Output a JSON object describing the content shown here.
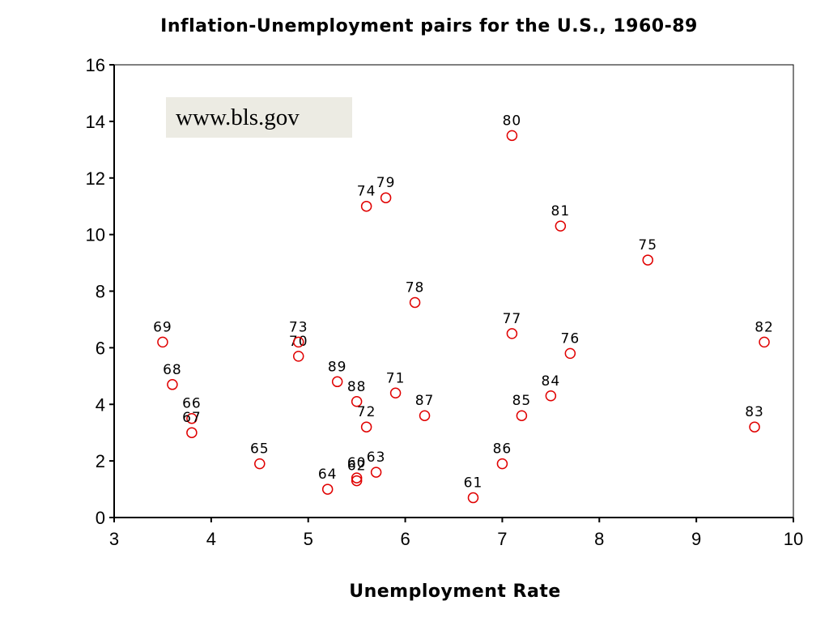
{
  "chart_data": {
    "type": "scatter",
    "title": "Inflation-Unemployment pairs for the U.S., 1960-89",
    "xlabel": "Unemployment Rate",
    "ylabel": "",
    "xlim": [
      3,
      10
    ],
    "ylim": [
      0,
      16
    ],
    "x_ticks": [
      3,
      4,
      5,
      6,
      7,
      8,
      9,
      10
    ],
    "y_ticks": [
      0,
      2,
      4,
      6,
      8,
      10,
      12,
      14,
      16
    ],
    "grid": false,
    "marker": "circle",
    "marker_color": "#e00000",
    "annotation": "www.bls.gov",
    "points": [
      {
        "label": "61",
        "x": 6.7,
        "y": 0.7
      },
      {
        "label": "62",
        "x": 5.5,
        "y": 1.3
      },
      {
        "label": "63",
        "x": 5.7,
        "y": 1.6
      },
      {
        "label": "64",
        "x": 5.2,
        "y": 1.0
      },
      {
        "label": "65",
        "x": 4.5,
        "y": 1.9
      },
      {
        "label": "66",
        "x": 3.8,
        "y": 3.5
      },
      {
        "label": "67",
        "x": 3.8,
        "y": 3.0
      },
      {
        "label": "68",
        "x": 3.6,
        "y": 4.7
      },
      {
        "label": "69",
        "x": 3.5,
        "y": 6.2
      },
      {
        "label": "70",
        "x": 4.9,
        "y": 5.7
      },
      {
        "label": "71",
        "x": 5.9,
        "y": 4.4
      },
      {
        "label": "72",
        "x": 5.6,
        "y": 3.2
      },
      {
        "label": "73",
        "x": 4.9,
        "y": 6.2
      },
      {
        "label": "74",
        "x": 5.6,
        "y": 11.0
      },
      {
        "label": "75",
        "x": 8.5,
        "y": 9.1
      },
      {
        "label": "76",
        "x": 7.7,
        "y": 5.8
      },
      {
        "label": "77",
        "x": 7.1,
        "y": 6.5
      },
      {
        "label": "78",
        "x": 6.1,
        "y": 7.6
      },
      {
        "label": "79",
        "x": 5.8,
        "y": 11.3
      },
      {
        "label": "80",
        "x": 7.1,
        "y": 13.5
      },
      {
        "label": "81",
        "x": 7.6,
        "y": 10.3
      },
      {
        "label": "82",
        "x": 9.7,
        "y": 6.2
      },
      {
        "label": "83",
        "x": 9.6,
        "y": 3.2
      },
      {
        "label": "84",
        "x": 7.5,
        "y": 4.3
      },
      {
        "label": "85",
        "x": 7.2,
        "y": 3.6
      },
      {
        "label": "86",
        "x": 7.0,
        "y": 1.9
      },
      {
        "label": "87",
        "x": 6.2,
        "y": 3.6
      },
      {
        "label": "88",
        "x": 5.5,
        "y": 4.1
      },
      {
        "label": "89",
        "x": 5.3,
        "y": 4.8
      },
      {
        "label": "60",
        "x": 5.5,
        "y": 1.4
      }
    ]
  }
}
